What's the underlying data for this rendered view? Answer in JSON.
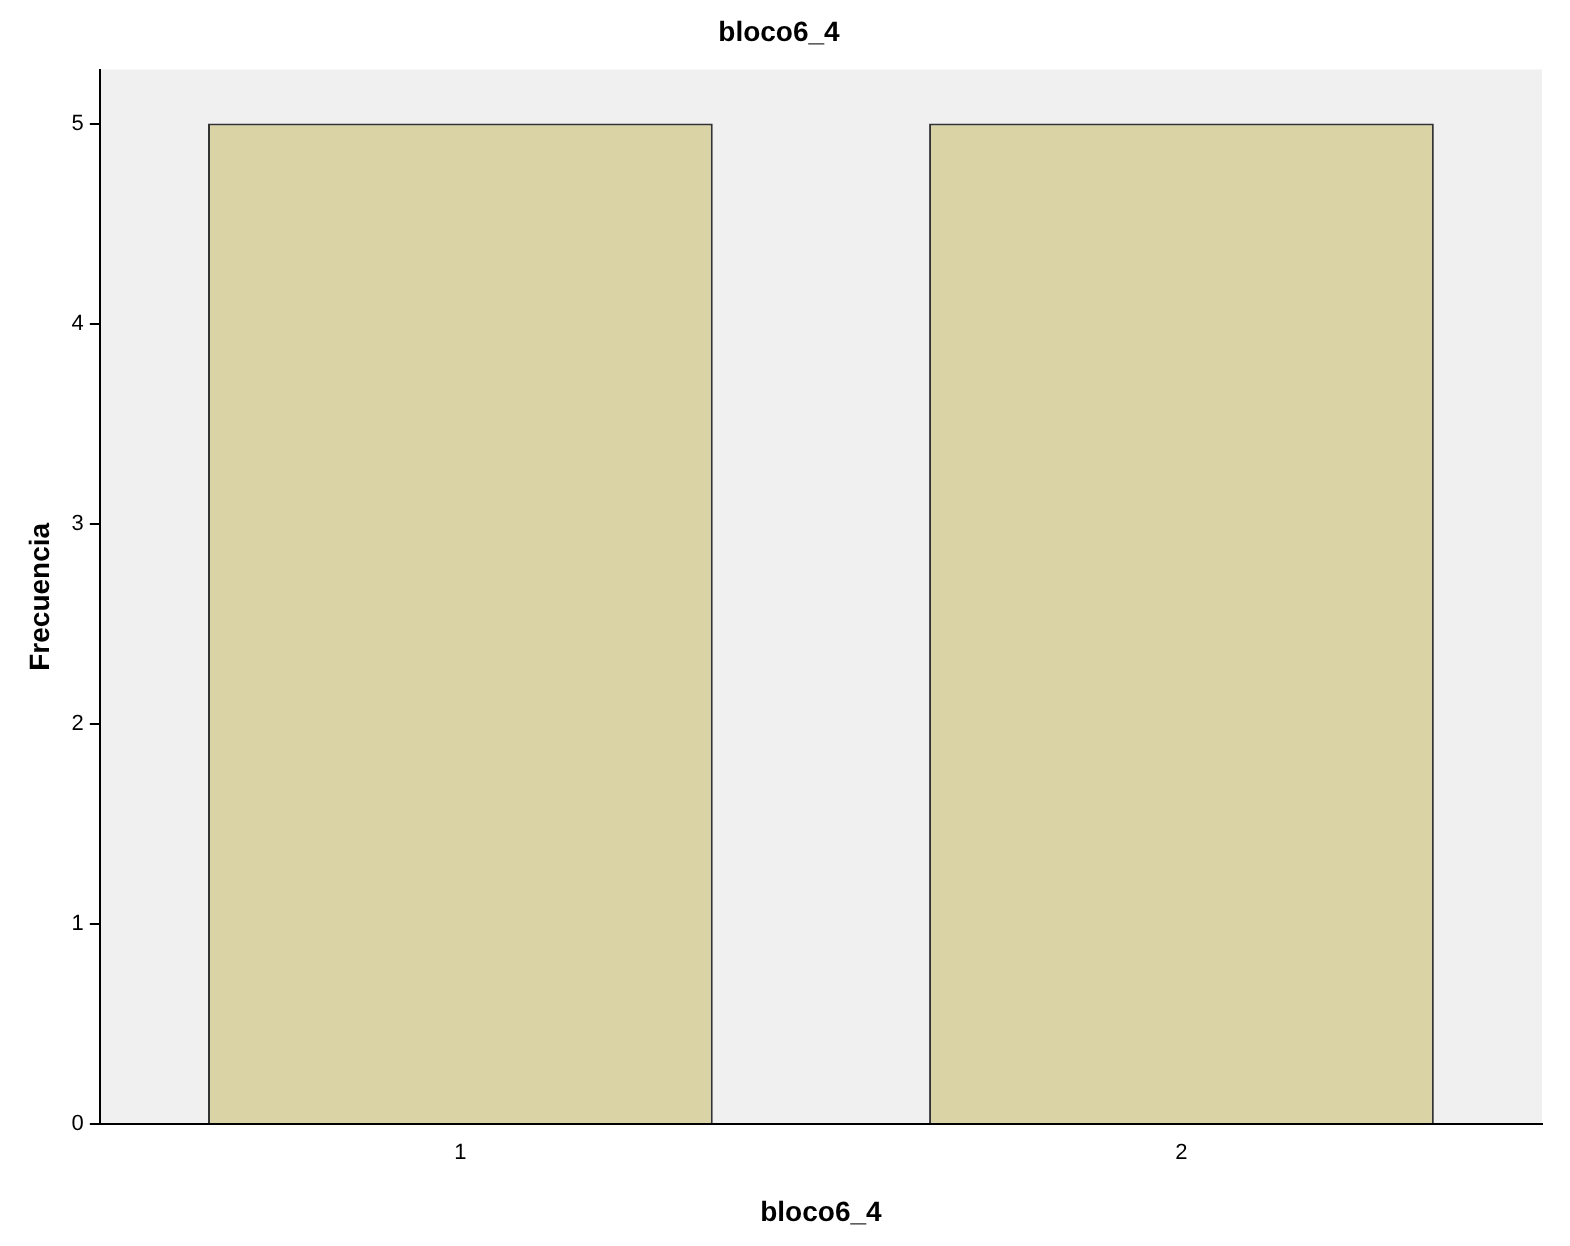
{
  "chart_data": {
    "type": "bar",
    "title": "bloco6_4",
    "xlabel": "bloco6_4",
    "ylabel": "Frecuencia",
    "categories": [
      "1",
      "2"
    ],
    "values": [
      5,
      5
    ],
    "color": "#d9d3a5",
    "ylim": [
      0,
      5.27
    ],
    "yticks": [
      0,
      1,
      2,
      3,
      4,
      5
    ],
    "grid": false,
    "legend": false
  }
}
